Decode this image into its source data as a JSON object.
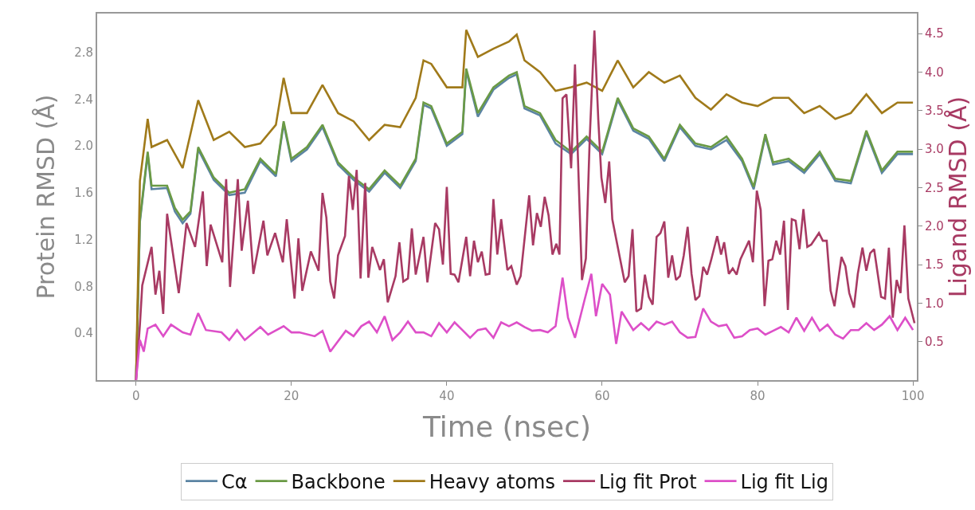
{
  "chart_data": {
    "type": "line",
    "xlabel": "Time (nsec)",
    "ylabel": "Protein RMSD (Å)",
    "y2label": "Ligand RMSD (Å)",
    "xlim": [
      -5,
      100.5
    ],
    "xticks": [
      0,
      20,
      40,
      60,
      80,
      100
    ],
    "ylim": [
      0,
      3.13
    ],
    "yticks": [
      {
        "value": 0.4,
        "label": "0.4"
      },
      {
        "value": 0.8,
        "label": "0.8"
      },
      {
        "value": 1.2,
        "label": "1.2"
      },
      {
        "value": 1.6,
        "label": "1.6"
      },
      {
        "value": 2.0,
        "label": "2.0"
      },
      {
        "value": 2.4,
        "label": "2.4"
      },
      {
        "value": 2.8,
        "label": "2.8"
      }
    ],
    "y2lim": [
      0,
      4.76
    ],
    "y2ticks": [
      0.5,
      {
        "value": 1.0,
        "label": "1.0"
      },
      1.5,
      {
        "value": 2.0,
        "label": "2.0"
      },
      2.5,
      {
        "value": 3.0,
        "label": "3.0"
      },
      3.5,
      {
        "value": 4.0,
        "label": "4.0"
      },
      4.5
    ],
    "legend": "bottom",
    "marker": "none",
    "line_style": "solid",
    "series": [
      {
        "name": "Cα",
        "color": "#5b84a3",
        "x": [
          0,
          0.5,
          1.5,
          2,
          4,
          5,
          6,
          7,
          8,
          10,
          12,
          14,
          16,
          18,
          19,
          20,
          22,
          24,
          26,
          28,
          30,
          32,
          34,
          36,
          37,
          38,
          40,
          42,
          42.5,
          44,
          46,
          48,
          49,
          50,
          52,
          54,
          56,
          58,
          60,
          62,
          64,
          66,
          68,
          70,
          72,
          74,
          76,
          78,
          79.5,
          81,
          82,
          84,
          86,
          88,
          90,
          92,
          94,
          96,
          98,
          100
        ],
        "values": [
          0,
          1.35,
          1.93,
          1.63,
          1.64,
          1.44,
          1.34,
          1.42,
          1.97,
          1.71,
          1.58,
          1.6,
          1.87,
          1.74,
          2.19,
          1.87,
          1.97,
          2.16,
          1.84,
          1.71,
          1.61,
          1.77,
          1.64,
          1.87,
          2.35,
          2.32,
          2.0,
          2.1,
          2.64,
          2.25,
          2.48,
          2.58,
          2.61,
          2.32,
          2.26,
          2.02,
          1.93,
          2.06,
          1.93,
          2.39,
          2.13,
          2.06,
          1.87,
          2.16,
          2.0,
          1.97,
          2.05,
          1.87,
          1.63,
          2.08,
          1.84,
          1.87,
          1.77,
          1.93,
          1.7,
          1.68,
          2.11,
          1.77,
          1.93,
          1.93
        ]
      },
      {
        "name": "Backbone",
        "color": "#6a9a45",
        "x": [
          0,
          0.5,
          1.5,
          2,
          4,
          5,
          6,
          7,
          8,
          10,
          12,
          14,
          16,
          18,
          19,
          20,
          22,
          24,
          26,
          28,
          30,
          32,
          34,
          36,
          37,
          38,
          40,
          42,
          42.5,
          44,
          46,
          48,
          49,
          50,
          52,
          54,
          56,
          58,
          60,
          62,
          64,
          66,
          68,
          70,
          72,
          74,
          76,
          78,
          79.5,
          81,
          82,
          84,
          86,
          88,
          90,
          92,
          94,
          96,
          98,
          100
        ],
        "values": [
          0,
          1.37,
          1.95,
          1.66,
          1.66,
          1.47,
          1.37,
          1.44,
          1.99,
          1.73,
          1.6,
          1.63,
          1.89,
          1.76,
          2.21,
          1.89,
          1.99,
          2.18,
          1.86,
          1.73,
          1.63,
          1.79,
          1.66,
          1.89,
          2.37,
          2.34,
          2.02,
          2.12,
          2.66,
          2.28,
          2.5,
          2.6,
          2.63,
          2.34,
          2.28,
          2.05,
          1.95,
          2.08,
          1.95,
          2.41,
          2.15,
          2.08,
          1.89,
          2.18,
          2.02,
          1.99,
          2.08,
          1.89,
          1.65,
          2.1,
          1.86,
          1.89,
          1.79,
          1.95,
          1.72,
          1.7,
          2.13,
          1.79,
          1.95,
          1.95
        ]
      },
      {
        "name": "Heavy atoms",
        "color": "#a07a1a",
        "x": [
          0,
          0.5,
          1.5,
          2,
          4,
          6,
          8,
          10,
          12,
          14,
          16,
          18,
          19,
          20,
          22,
          24,
          26,
          28,
          30,
          32,
          34,
          36,
          37,
          38,
          40,
          42,
          42.5,
          44,
          46,
          48,
          49,
          50,
          52,
          54,
          56,
          58,
          60,
          62,
          64,
          66,
          68,
          70,
          72,
          74,
          76,
          78,
          80,
          82,
          84,
          86,
          88,
          90,
          92,
          94,
          96,
          98,
          100
        ],
        "values": [
          0,
          1.7,
          2.23,
          1.99,
          2.05,
          1.81,
          2.39,
          2.05,
          2.12,
          1.99,
          2.02,
          2.18,
          2.58,
          2.28,
          2.28,
          2.52,
          2.28,
          2.21,
          2.05,
          2.18,
          2.16,
          2.41,
          2.73,
          2.7,
          2.5,
          2.5,
          2.99,
          2.76,
          2.83,
          2.89,
          2.95,
          2.73,
          2.63,
          2.47,
          2.5,
          2.54,
          2.47,
          2.73,
          2.5,
          2.63,
          2.54,
          2.6,
          2.41,
          2.31,
          2.44,
          2.37,
          2.34,
          2.41,
          2.41,
          2.28,
          2.34,
          2.23,
          2.28,
          2.44,
          2.28,
          2.37,
          2.37
        ]
      },
      {
        "name": "Lig fit Prot",
        "color": "#a83a63",
        "axis": "y2",
        "x": [
          0,
          0.5,
          0.8,
          2,
          2.5,
          3,
          3.5,
          4,
          5.5,
          6.5,
          7.6,
          8.6,
          9.1,
          9.6,
          11.1,
          11.6,
          12.1,
          13.1,
          13.6,
          14.4,
          15.1,
          16.4,
          16.9,
          17.9,
          18.9,
          19.4,
          20.4,
          20.9,
          21.4,
          22.5,
          23.5,
          24,
          24.5,
          25,
          25.5,
          26,
          26.9,
          27.4,
          27.9,
          28.4,
          28.9,
          29.5,
          29.9,
          30.4,
          31.4,
          31.9,
          32.4,
          33.4,
          33.9,
          34.4,
          35,
          35.5,
          36,
          37,
          37.5,
          38.5,
          39,
          39.5,
          40,
          40.5,
          41,
          41.5,
          42.5,
          43,
          43.5,
          44,
          44.5,
          45,
          45.5,
          46,
          46.5,
          47,
          47.8,
          48.3,
          49,
          49.5,
          50.6,
          51.1,
          51.6,
          52.1,
          52.6,
          53.1,
          53.6,
          54.1,
          54.5,
          54.9,
          55.4,
          56,
          56.5,
          56.9,
          57.4,
          57.9,
          58.4,
          59,
          59.5,
          59.9,
          60.4,
          60.9,
          61.3,
          62.1,
          62.9,
          63.4,
          63.9,
          64.4,
          65,
          65.5,
          66,
          66.5,
          67,
          67.5,
          68,
          68.5,
          69,
          69.5,
          70,
          70.5,
          71,
          71.5,
          72,
          72.5,
          73,
          73.5,
          74,
          74.8,
          75.3,
          75.7,
          76.3,
          76.8,
          77.3,
          77.8,
          78.9,
          79.4,
          79.9,
          80.4,
          80.9,
          81.4,
          81.9,
          82.4,
          82.9,
          83.4,
          83.9,
          84.4,
          84.9,
          85.4,
          85.9,
          86.4,
          86.9,
          87.9,
          88.4,
          88.9,
          89.4,
          89.9,
          90.8,
          91.3,
          91.8,
          92.4,
          92.9,
          93.5,
          94,
          94.5,
          95,
          95.9,
          96.4,
          96.9,
          97.4,
          97.9,
          98.4,
          98.9,
          99.4,
          100.2
        ],
        "values": [
          0,
          0.72,
          1.23,
          1.73,
          1.11,
          1.42,
          0.86,
          2.16,
          1.13,
          2.04,
          1.73,
          2.45,
          1.48,
          2.02,
          1.53,
          2.61,
          1.21,
          2.61,
          1.68,
          2.33,
          1.38,
          2.07,
          1.62,
          1.91,
          1.53,
          2.09,
          1.06,
          1.84,
          1.16,
          1.67,
          1.42,
          2.43,
          2.11,
          1.28,
          1.06,
          1.62,
          1.87,
          2.65,
          2.21,
          2.73,
          1.32,
          2.56,
          1.33,
          1.73,
          1.43,
          1.57,
          1.01,
          1.35,
          1.79,
          1.28,
          1.32,
          1.97,
          1.37,
          1.86,
          1.27,
          2.04,
          1.96,
          1.5,
          2.51,
          1.38,
          1.37,
          1.27,
          1.86,
          1.35,
          1.81,
          1.53,
          1.67,
          1.37,
          1.38,
          2.35,
          1.63,
          2.09,
          1.43,
          1.48,
          1.24,
          1.35,
          2.4,
          1.75,
          2.17,
          1.99,
          2.38,
          2.14,
          1.63,
          1.77,
          1.63,
          3.66,
          3.71,
          2.75,
          4.1,
          2.82,
          1.3,
          1.58,
          3.15,
          4.54,
          3.38,
          2.63,
          2.3,
          2.84,
          2.09,
          1.68,
          1.27,
          1.35,
          1.96,
          0.89,
          0.93,
          1.37,
          1.08,
          0.98,
          1.86,
          1.91,
          2.06,
          1.33,
          1.62,
          1.3,
          1.35,
          1.62,
          1.99,
          1.38,
          1.04,
          1.09,
          1.47,
          1.37,
          1.55,
          1.87,
          1.63,
          1.79,
          1.38,
          1.45,
          1.37,
          1.57,
          1.81,
          1.53,
          2.46,
          2.21,
          0.96,
          1.55,
          1.57,
          1.81,
          1.63,
          2.07,
          0.91,
          2.09,
          2.07,
          1.7,
          2.22,
          1.73,
          1.76,
          1.91,
          1.81,
          1.81,
          1.16,
          0.96,
          1.6,
          1.48,
          1.13,
          0.94,
          1.38,
          1.72,
          1.42,
          1.65,
          1.7,
          1.08,
          1.06,
          1.72,
          0.81,
          1.3,
          1.13,
          2.01,
          1.06,
          0.74
        ]
      },
      {
        "name": "Lig fit Lig",
        "color": "#dd4fc8",
        "axis": "y2",
        "x": [
          0,
          0.5,
          1,
          1.5,
          2.5,
          3.5,
          4.5,
          6,
          7,
          8,
          9,
          11,
          12,
          13,
          14,
          16,
          17,
          19,
          20,
          21,
          23,
          24,
          25,
          27,
          28,
          29,
          30,
          31,
          32,
          33,
          34,
          35,
          36,
          37,
          38,
          39,
          40,
          41,
          42,
          43,
          44,
          45,
          46,
          47,
          48,
          49,
          50,
          51,
          52,
          53,
          54,
          54.9,
          55.6,
          56.5,
          57.7,
          58.6,
          59.2,
          60,
          61,
          61.8,
          62.5,
          64,
          65,
          66,
          67,
          68,
          69,
          70,
          71,
          72,
          73,
          74,
          75,
          76,
          77,
          78,
          79,
          80,
          81,
          82,
          83,
          84,
          85,
          86,
          87,
          88,
          89,
          90,
          91,
          92,
          93,
          94,
          95,
          96,
          97,
          98,
          99,
          100
        ],
        "values": [
          0,
          0.52,
          0.37,
          0.67,
          0.72,
          0.57,
          0.72,
          0.62,
          0.59,
          0.87,
          0.65,
          0.62,
          0.52,
          0.65,
          0.52,
          0.69,
          0.59,
          0.7,
          0.62,
          0.62,
          0.57,
          0.64,
          0.37,
          0.64,
          0.57,
          0.7,
          0.76,
          0.62,
          0.83,
          0.52,
          0.62,
          0.76,
          0.62,
          0.62,
          0.57,
          0.74,
          0.62,
          0.75,
          0.65,
          0.55,
          0.65,
          0.67,
          0.55,
          0.75,
          0.7,
          0.75,
          0.69,
          0.64,
          0.65,
          0.62,
          0.7,
          1.33,
          0.81,
          0.55,
          1.03,
          1.38,
          0.83,
          1.25,
          1.11,
          0.47,
          0.89,
          0.65,
          0.74,
          0.65,
          0.76,
          0.72,
          0.76,
          0.62,
          0.55,
          0.56,
          0.93,
          0.76,
          0.7,
          0.72,
          0.55,
          0.57,
          0.65,
          0.67,
          0.59,
          0.64,
          0.69,
          0.62,
          0.81,
          0.64,
          0.81,
          0.64,
          0.72,
          0.59,
          0.54,
          0.65,
          0.65,
          0.74,
          0.65,
          0.72,
          0.83,
          0.65,
          0.81,
          0.65
        ]
      }
    ]
  }
}
